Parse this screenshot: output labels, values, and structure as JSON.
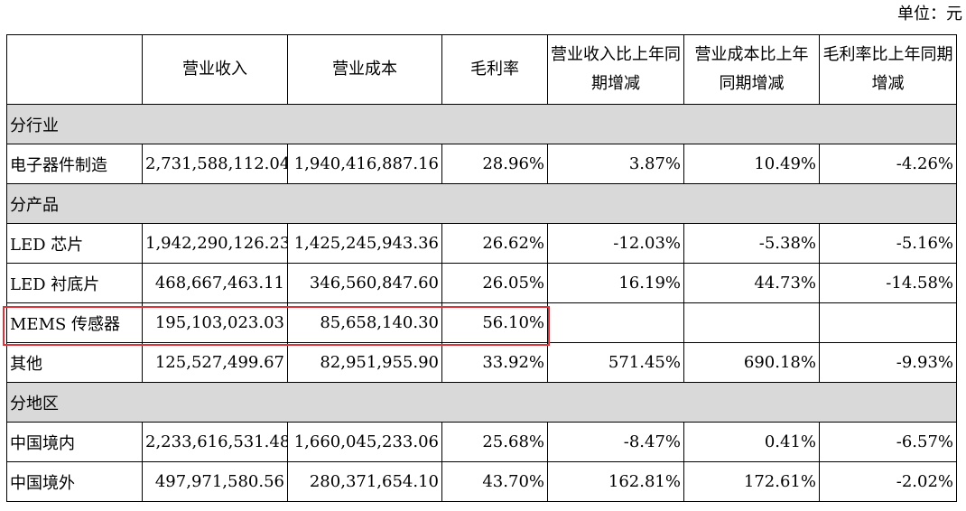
{
  "unit_label": "单位：元",
  "headers": [
    "",
    "营业收入",
    "营业成本",
    "毛利率",
    "营业收入比上年同期增减",
    "营业成本比上年同期增减",
    "毛利率比上年同期增减"
  ],
  "sections": [
    {
      "title": "分行业",
      "rows": [
        {
          "label": "电子器件制造",
          "revenue": "2,731,588,112.04",
          "cost": "1,940,416,887.16",
          "margin": "28.96%",
          "rev_change": "3.87%",
          "cost_change": "10.49%",
          "margin_change": "-4.26%"
        }
      ]
    },
    {
      "title": "分产品",
      "rows": [
        {
          "label": "LED 芯片",
          "revenue": "1,942,290,126.23",
          "cost": "1,425,245,943.36",
          "margin": "26.62%",
          "rev_change": "-12.03%",
          "cost_change": "-5.38%",
          "margin_change": "-5.16%"
        },
        {
          "label": "LED 衬底片",
          "revenue": "468,667,463.11",
          "cost": "346,560,847.60",
          "margin": "26.05%",
          "rev_change": "16.19%",
          "cost_change": "44.73%",
          "margin_change": "-14.58%"
        },
        {
          "label": "MEMS 传感器",
          "revenue": "195,103,023.03",
          "cost": "85,658,140.30",
          "margin": "56.10%",
          "rev_change": "",
          "cost_change": "",
          "margin_change": ""
        },
        {
          "label": "其他",
          "revenue": "125,527,499.67",
          "cost": "82,951,955.90",
          "margin": "33.92%",
          "rev_change": "571.45%",
          "cost_change": "690.18%",
          "margin_change": "-9.93%"
        }
      ]
    },
    {
      "title": "分地区",
      "rows": [
        {
          "label": "中国境内",
          "revenue": "2,233,616,531.48",
          "cost": "1,660,045,233.06",
          "margin": "25.68%",
          "rev_change": "-8.47%",
          "cost_change": "0.41%",
          "margin_change": "-6.57%"
        },
        {
          "label": "中国境外",
          "revenue": "497,971,580.56",
          "cost": "280,371,654.10",
          "margin": "43.70%",
          "rev_change": "162.81%",
          "cost_change": "172.61%",
          "margin_change": "-2.02%"
        }
      ]
    }
  ],
  "highlight_color": "#e0323a",
  "section_bg": "#d9d9d9"
}
